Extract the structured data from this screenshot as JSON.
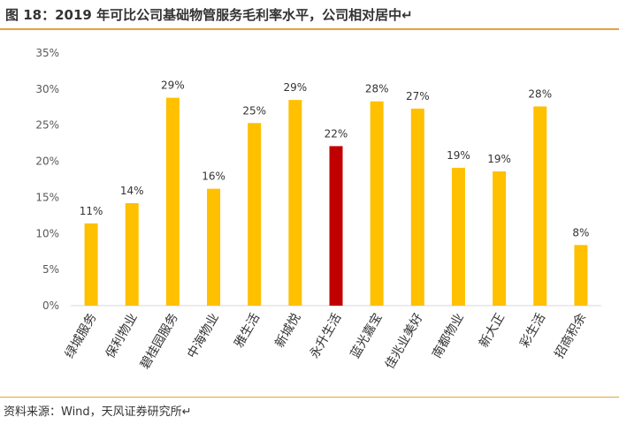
{
  "header": {
    "title": "图 18：2019 年可比公司基础物管服务毛利率水平，公司相对居中↵"
  },
  "footer": {
    "source": "资料来源：Wind，天风证券研究所↵"
  },
  "colors": {
    "default_bar": "#FFC000",
    "highlight_bar": "#C00000",
    "accent_rule": "#E8A13D"
  },
  "chart_data": {
    "type": "bar",
    "title": "",
    "xlabel": "",
    "ylabel": "",
    "categories": [
      "绿城服务",
      "保利物业",
      "碧桂园服务",
      "中海物业",
      "雅生活",
      "新城悦",
      "永升生活",
      "蓝光嘉宝",
      "佳兆业美好",
      "南都物业",
      "新大正",
      "彩生活",
      "招商积余"
    ],
    "values": [
      11.4,
      14.2,
      28.8,
      16.2,
      25.3,
      28.5,
      22.1,
      28.3,
      27.3,
      19.1,
      18.6,
      27.6,
      8.4
    ],
    "data_labels": [
      "11%",
      "14%",
      "29%",
      "16%",
      "25%",
      "29%",
      "22%",
      "28%",
      "27%",
      "19%",
      "19%",
      "28%",
      "8%"
    ],
    "highlight_index": 6,
    "ylim": [
      0,
      35
    ],
    "yticks": [
      0,
      5,
      10,
      15,
      20,
      25,
      30,
      35
    ],
    "ytick_labels": [
      "0%",
      "5%",
      "10%",
      "15%",
      "20%",
      "25%",
      "30%",
      "35%"
    ],
    "grid": false,
    "legend": "none"
  }
}
